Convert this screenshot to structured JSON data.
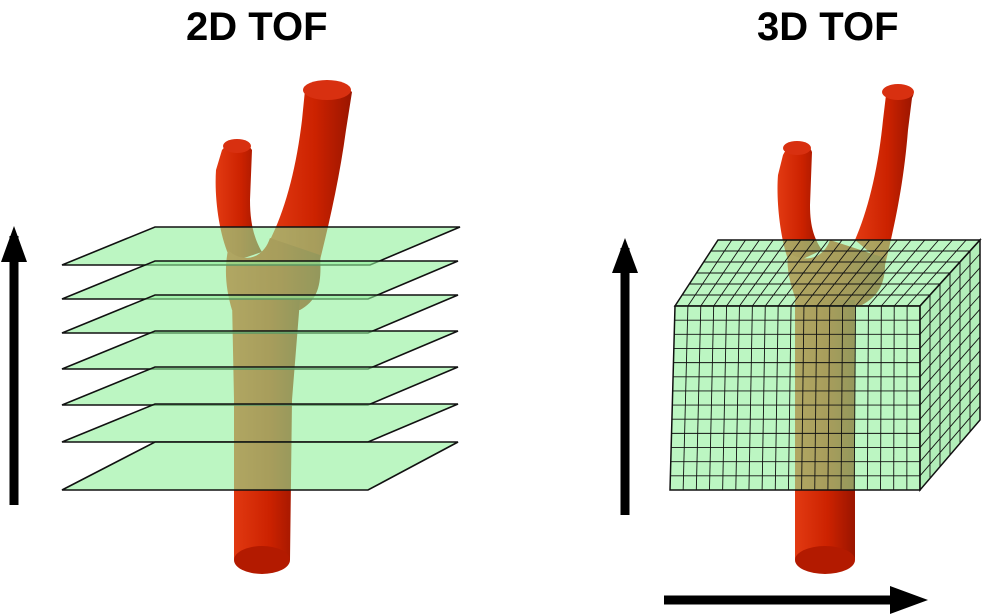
{
  "panels": [
    {
      "title": "2D TOF",
      "slice_count": 7
    },
    {
      "title": "3D TOF"
    }
  ],
  "colors": {
    "vessel": "#cc2200",
    "vessel_dark": "#a81800",
    "slab_fill": "#8ff09a",
    "slab_edge": "#111111",
    "arrow": "#000000",
    "background": "#ffffff"
  }
}
